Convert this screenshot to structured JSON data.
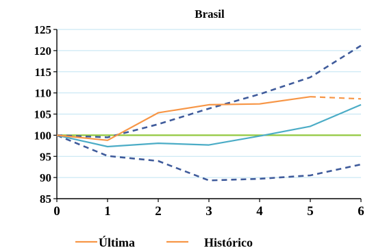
{
  "chart_data": {
    "type": "line",
    "title": "Brasil",
    "xlabel": "",
    "ylabel": "",
    "x": [
      0,
      1,
      2,
      3,
      4,
      5,
      6
    ],
    "xlim": [
      0,
      6
    ],
    "ylim": [
      85,
      125
    ],
    "yticks": [
      85,
      90,
      95,
      100,
      105,
      110,
      115,
      120,
      125
    ],
    "xticks": [
      0,
      1,
      2,
      3,
      4,
      5,
      6
    ],
    "grid": true,
    "legend_position": "bottom",
    "series": [
      {
        "name": "Última",
        "color": "#f79646",
        "style": "solid",
        "values": [
          100,
          98.8,
          105.3,
          107.2,
          107.4,
          109.1,
          null
        ]
      },
      {
        "name": "",
        "color": "#f79646",
        "style": "dashed",
        "values": [
          null,
          null,
          null,
          null,
          null,
          109.1,
          108.6
        ]
      },
      {
        "name": "Histórico",
        "color": "#4bacc6",
        "style": "solid",
        "values": [
          100,
          97.3,
          98.1,
          97.7,
          99.8,
          102.1,
          107.2
        ]
      },
      {
        "name": "",
        "color": "#3f5b9b",
        "style": "dashed",
        "values": [
          100,
          99.5,
          102.6,
          106.3,
          109.7,
          113.7,
          121.2
        ]
      },
      {
        "name": "",
        "color": "#3f5b9b",
        "style": "dashed",
        "values": [
          100,
          95.1,
          93.9,
          89.3,
          89.7,
          90.5,
          93.1
        ]
      },
      {
        "name": "",
        "color": "#92c83e",
        "style": "solid",
        "values": [
          100,
          100,
          100,
          100,
          100,
          100,
          100
        ]
      }
    ],
    "legend": [
      "Última",
      "Histórico"
    ]
  }
}
